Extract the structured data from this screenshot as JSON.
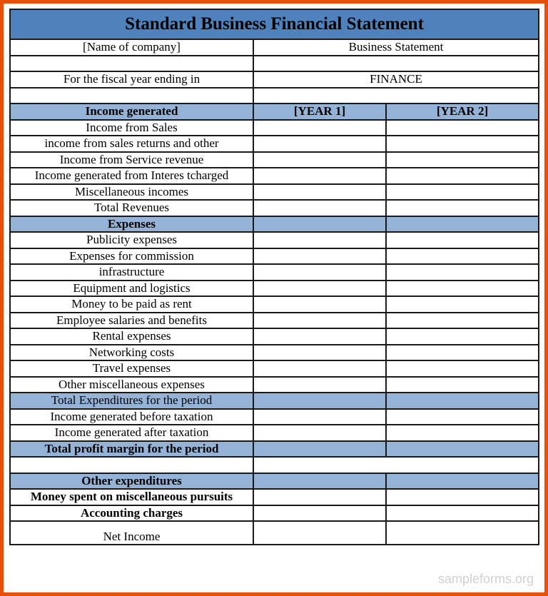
{
  "title": "Standard Business Financial Statement",
  "header_rows": [
    {
      "left": "[Name of company]",
      "right": "Business Statement"
    },
    {
      "left": "",
      "right": ""
    },
    {
      "left": "For the fiscal year ending in",
      "right": "FINANCE"
    },
    {
      "left": "",
      "right": ""
    }
  ],
  "year_headers": {
    "label": "Income generated",
    "year1": "[YEAR 1]",
    "year2": "[YEAR 2]"
  },
  "rows": [
    {
      "label": "Income from Sales"
    },
    {
      "label": "income from sales returns and other"
    },
    {
      "label": "Income from Service revenue"
    },
    {
      "label": "Income generated from Interes tcharged"
    },
    {
      "label": "Miscellaneous incomes"
    },
    {
      "label": "Total Revenues"
    },
    {
      "label": "Expenses",
      "style": "blue-bold"
    },
    {
      "label": "Publicity expenses"
    },
    {
      "label": "Expenses for commission"
    },
    {
      "label": "infrastructure"
    },
    {
      "label": "Equipment and logistics"
    },
    {
      "label": "Money to be paid as rent"
    },
    {
      "label": "Employee salaries and benefits"
    },
    {
      "label": "Rental expenses"
    },
    {
      "label": "Networking costs"
    },
    {
      "label": "Travel expenses"
    },
    {
      "label": "Other miscellaneous expenses"
    },
    {
      "label": "Total Expenditures for the period",
      "style": "blue"
    },
    {
      "label": "Income generated before taxation"
    },
    {
      "label": "Income generated after taxation"
    },
    {
      "label": "Total profit margin for the period",
      "style": "blue-bold"
    },
    {
      "label": "",
      "style": "merged"
    },
    {
      "label": "Other expenditures",
      "style": "blue-bold"
    },
    {
      "label": "Money spent on miscellaneous pursuits",
      "style": "bold"
    },
    {
      "label": "Accounting charges",
      "style": "bold"
    },
    {
      "label": "Net Income",
      "style": "tall"
    }
  ],
  "watermark": "sampleforms.org",
  "colors": {
    "border": "#e8500a",
    "title_bg": "#4f81bd",
    "section_bg": "#95b3d7"
  }
}
